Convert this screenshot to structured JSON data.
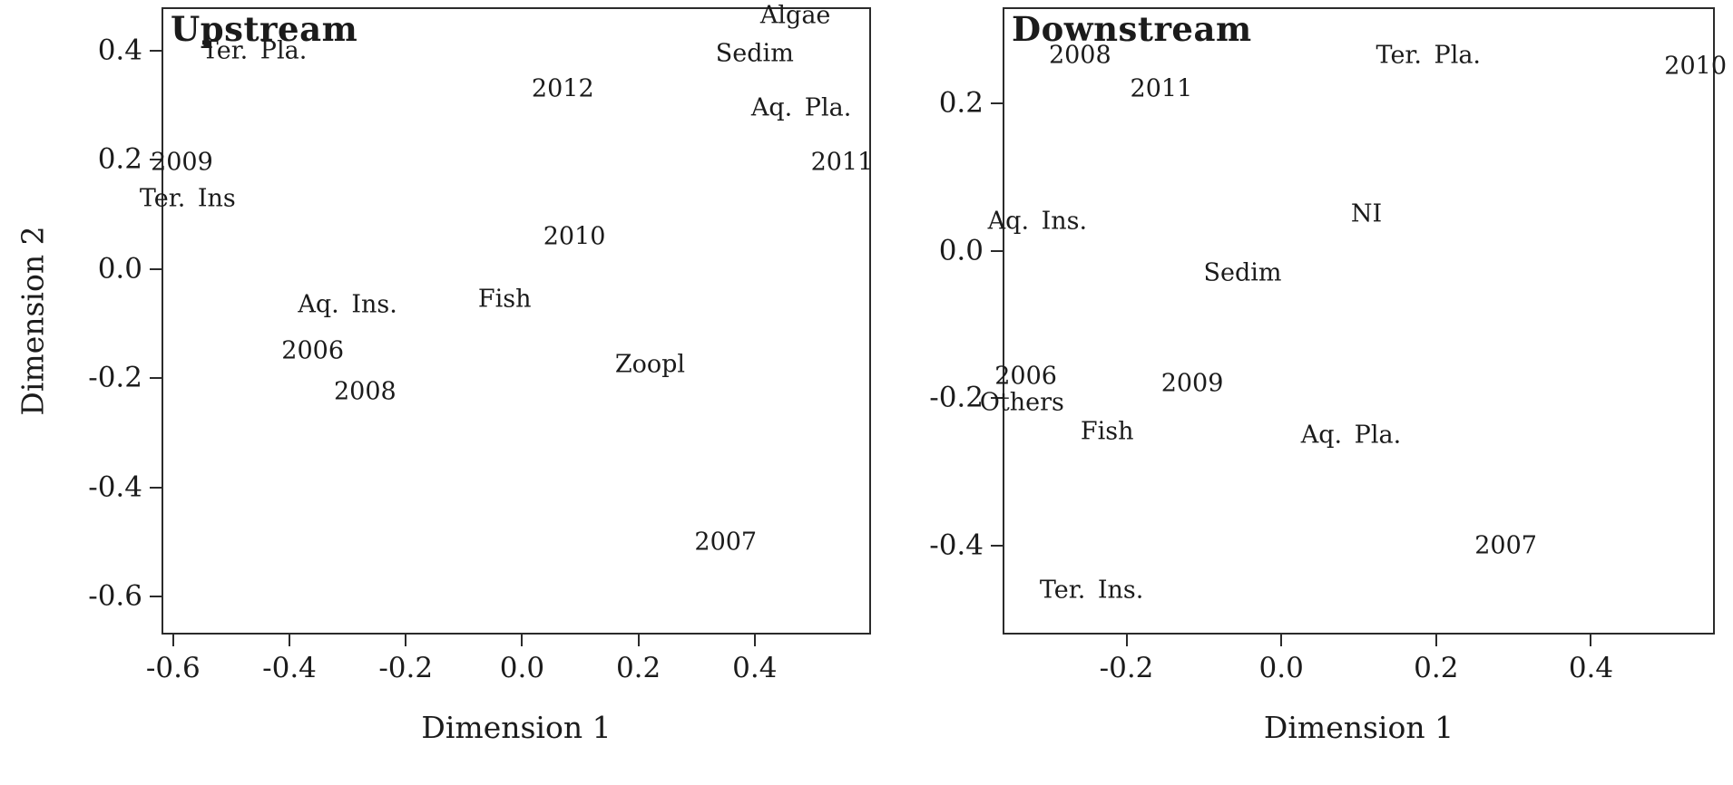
{
  "figure": {
    "background": "#ffffff",
    "text_color": "#1b1b1b",
    "axis_color": "#2b2b2b"
  },
  "chart_data": [
    {
      "type": "scatter",
      "panel": "left",
      "title": "Upstream",
      "xlabel": "Dimension 1",
      "ylabel": "Dimension 2",
      "xlim": [
        -0.62,
        0.6
      ],
      "ylim": [
        -0.67,
        0.48
      ],
      "xticks": [
        -0.6,
        -0.4,
        -0.2,
        0,
        0.2,
        0.4
      ],
      "yticks": [
        0.4,
        0.2,
        0,
        -0.2,
        -0.4,
        -0.6
      ],
      "grid": false,
      "legend": "none",
      "points_rendered_as": "text-labels",
      "points": [
        {
          "label": "Algae",
          "x": 0.47,
          "y": 0.465
        },
        {
          "label": "Ter. Pla.",
          "x": -0.46,
          "y": 0.4
        },
        {
          "label": "Sedim",
          "x": 0.4,
          "y": 0.395
        },
        {
          "label": "2012",
          "x": 0.07,
          "y": 0.33
        },
        {
          "label": "Aq. Pla.",
          "x": 0.48,
          "y": 0.295
        },
        {
          "label": "2009",
          "x": -0.585,
          "y": 0.195
        },
        {
          "label": "2011",
          "x": 0.55,
          "y": 0.195
        },
        {
          "label": "Ter. Ins",
          "x": -0.575,
          "y": 0.13
        },
        {
          "label": "2010",
          "x": 0.09,
          "y": 0.06
        },
        {
          "label": "Aq. Ins.",
          "x": -0.3,
          "y": -0.065
        },
        {
          "label": "Fish",
          "x": -0.03,
          "y": -0.055
        },
        {
          "label": "2006",
          "x": -0.36,
          "y": -0.15
        },
        {
          "label": "Zoopl",
          "x": 0.22,
          "y": -0.175
        },
        {
          "label": "2008",
          "x": -0.27,
          "y": -0.225
        },
        {
          "label": "2007",
          "x": 0.35,
          "y": -0.5
        }
      ]
    },
    {
      "type": "scatter",
      "panel": "right",
      "title": "Downstream",
      "xlabel": "Dimension 1",
      "ylabel": "",
      "xlim": [
        -0.36,
        0.56
      ],
      "ylim": [
        -0.52,
        0.33
      ],
      "xticks": [
        -0.2,
        0,
        0.2,
        0.4
      ],
      "yticks": [
        0.2,
        0,
        -0.2,
        -0.4
      ],
      "grid": false,
      "legend": "none",
      "points_rendered_as": "text-labels",
      "points": [
        {
          "label": "2008",
          "x": -0.26,
          "y": 0.265
        },
        {
          "label": "Ter. Pla.",
          "x": 0.19,
          "y": 0.265
        },
        {
          "label": "2010",
          "x": 0.535,
          "y": 0.25
        },
        {
          "label": "2011",
          "x": -0.155,
          "y": 0.22
        },
        {
          "label": "Aq. Ins.",
          "x": -0.315,
          "y": 0.04
        },
        {
          "label": "NI",
          "x": 0.11,
          "y": 0.05
        },
        {
          "label": "Sedim",
          "x": -0.05,
          "y": -0.03
        },
        {
          "label": "2006",
          "x": -0.33,
          "y": -0.17
        },
        {
          "label": "2009",
          "x": -0.115,
          "y": -0.18
        },
        {
          "label": "Others",
          "x": -0.335,
          "y": -0.205
        },
        {
          "label": "Fish",
          "x": -0.225,
          "y": -0.245
        },
        {
          "label": "Aq. Pla.",
          "x": 0.09,
          "y": -0.25
        },
        {
          "label": "2007",
          "x": 0.29,
          "y": -0.4
        },
        {
          "label": "Ter. Ins.",
          "x": -0.245,
          "y": -0.46
        }
      ]
    }
  ]
}
